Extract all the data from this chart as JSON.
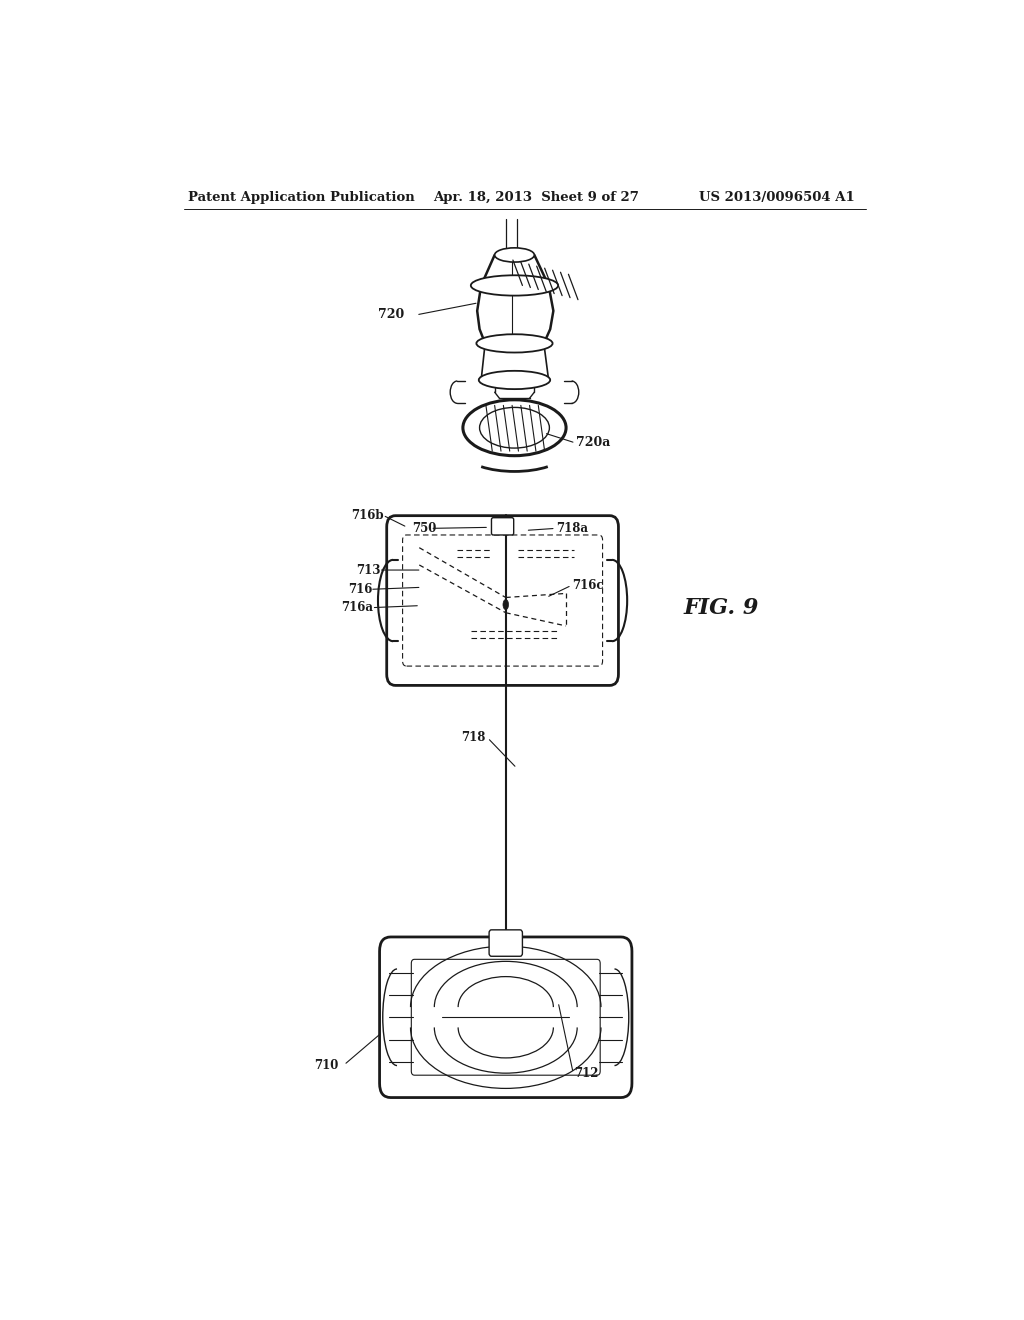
{
  "background_color": "#ffffff",
  "header_left": "Patent Application Publication",
  "header_center": "Apr. 18, 2013  Sheet 9 of 27",
  "header_right": "US 2013/0096504 A1",
  "fig_label": "FIG. 9",
  "line_color": "#1a1a1a",
  "text_color": "#1a1a1a",
  "header_fontsize": 9.5,
  "label_fontsize": 9.0,
  "fig_label_fontsize": 16
}
